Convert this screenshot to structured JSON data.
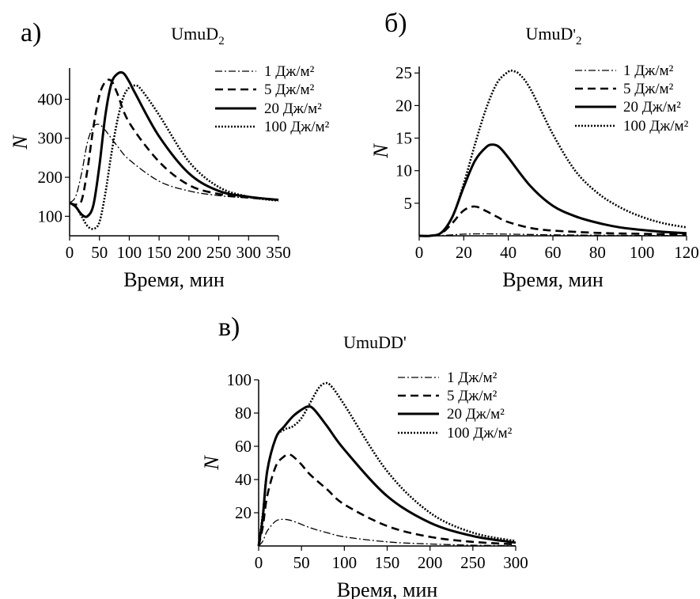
{
  "chart_data": [
    {
      "panel_label": "а)",
      "title": "UmuD",
      "title_sub": "2",
      "title_prime": "",
      "type": "line",
      "xlabel": "Время, мин",
      "ylabel": "N",
      "xlim": [
        0,
        350
      ],
      "ylim": [
        50,
        480
      ],
      "xticks": [
        "0",
        "50",
        "100",
        "150",
        "200",
        "250",
        "300",
        "350"
      ],
      "yticks": [
        "100",
        "200",
        "300",
        "400"
      ],
      "legend_position": "top-right",
      "series": [
        {
          "name": "1 Дж/м²",
          "style": "dashdot",
          "x": [
            0,
            10,
            20,
            30,
            40,
            50,
            60,
            80,
            100,
            150,
            200,
            250,
            300,
            350
          ],
          "y": [
            135,
            150,
            210,
            290,
            330,
            335,
            320,
            280,
            245,
            190,
            165,
            153,
            147,
            143
          ]
        },
        {
          "name": "5 Дж/м²",
          "style": "dashed",
          "x": [
            0,
            10,
            20,
            30,
            40,
            50,
            60,
            70,
            80,
            100,
            150,
            200,
            250,
            300,
            350
          ],
          "y": [
            135,
            130,
            140,
            220,
            330,
            410,
            445,
            447,
            415,
            340,
            240,
            180,
            157,
            148,
            142
          ]
        },
        {
          "name": "20 Дж/м²",
          "style": "solid",
          "x": [
            0,
            10,
            20,
            30,
            40,
            50,
            60,
            70,
            80,
            90,
            100,
            110,
            150,
            200,
            250,
            300,
            350
          ],
          "y": [
            135,
            125,
            105,
            100,
            130,
            230,
            360,
            440,
            465,
            467,
            445,
            415,
            305,
            210,
            165,
            150,
            142
          ]
        },
        {
          "name": "100 Дж/м²",
          "style": "dotted",
          "x": [
            0,
            10,
            20,
            30,
            40,
            50,
            60,
            70,
            80,
            90,
            100,
            110,
            120,
            150,
            200,
            250,
            300,
            350
          ],
          "y": [
            135,
            125,
            100,
            75,
            68,
            85,
            160,
            260,
            345,
            405,
            430,
            435,
            425,
            360,
            240,
            175,
            150,
            140
          ]
        }
      ]
    },
    {
      "panel_label": "б)",
      "title": "UmuD",
      "title_sub": "2",
      "title_prime": "'",
      "type": "line",
      "xlabel": "Время, мин",
      "ylabel": "N",
      "xlim": [
        0,
        120
      ],
      "ylim": [
        0,
        26
      ],
      "xticks": [
        "0",
        "20",
        "40",
        "60",
        "80",
        "100",
        "120"
      ],
      "yticks": [
        "5",
        "10",
        "15",
        "20",
        "25"
      ],
      "legend_position": "top-right",
      "series": [
        {
          "name": "1 Дж/м²",
          "style": "dashdot",
          "x": [
            0,
            10,
            20,
            30,
            40,
            60,
            80,
            100,
            120
          ],
          "y": [
            0,
            0.05,
            0.25,
            0.3,
            0.25,
            0.15,
            0.1,
            0.05,
            0.03
          ]
        },
        {
          "name": "5 Дж/м²",
          "style": "dashed",
          "x": [
            0,
            5,
            10,
            15,
            20,
            25,
            30,
            35,
            40,
            50,
            60,
            80,
            100,
            120
          ],
          "y": [
            0,
            0,
            0.4,
            2.0,
            3.9,
            4.5,
            3.8,
            2.9,
            2.1,
            1.2,
            0.8,
            0.45,
            0.3,
            0.2
          ]
        },
        {
          "name": "20 Дж/м²",
          "style": "solid",
          "x": [
            0,
            5,
            10,
            15,
            20,
            25,
            30,
            33,
            36,
            40,
            50,
            60,
            70,
            80,
            90,
            100,
            110,
            120
          ],
          "y": [
            0,
            0,
            0.5,
            3.0,
            7.5,
            11.5,
            13.6,
            14.0,
            13.6,
            12.0,
            7.6,
            4.6,
            3.0,
            2.0,
            1.3,
            0.9,
            0.6,
            0.4
          ]
        },
        {
          "name": "100 Дж/м²",
          "style": "dotted",
          "x": [
            0,
            5,
            10,
            15,
            20,
            25,
            30,
            35,
            40,
            42,
            45,
            50,
            60,
            70,
            80,
            90,
            100,
            110,
            120
          ],
          "y": [
            0,
            0,
            0.5,
            3.0,
            8.0,
            14.0,
            19.5,
            23.5,
            25.2,
            25.3,
            24.8,
            22.5,
            15.6,
            10.0,
            6.6,
            4.4,
            2.9,
            1.9,
            1.3
          ]
        }
      ]
    },
    {
      "panel_label": "в)",
      "title": "UmuDD'",
      "title_sub": "",
      "title_prime": "",
      "type": "line",
      "xlabel": "Время, мин",
      "ylabel": "N",
      "xlim": [
        0,
        300
      ],
      "ylim": [
        0,
        100
      ],
      "xticks": [
        "0",
        "50",
        "100",
        "150",
        "200",
        "250",
        "300"
      ],
      "yticks": [
        "20",
        "40",
        "60",
        "80",
        "100"
      ],
      "legend_position": "top-right",
      "series": [
        {
          "name": "1 Дж/м²",
          "style": "dashdot",
          "x": [
            0,
            5,
            10,
            20,
            30,
            40,
            60,
            80,
            100,
            150,
            200,
            250,
            300
          ],
          "y": [
            0,
            3,
            9,
            15,
            16,
            15,
            11,
            8,
            5.5,
            2.5,
            1.2,
            0.5,
            0.2
          ]
        },
        {
          "name": "5 Дж/м²",
          "style": "dashed",
          "x": [
            0,
            5,
            10,
            20,
            30,
            35,
            40,
            50,
            60,
            80,
            100,
            150,
            200,
            250,
            300
          ],
          "y": [
            0,
            12,
            30,
            48,
            54,
            55,
            54,
            49,
            43,
            34,
            25,
            12,
            5.5,
            2.5,
            1
          ]
        },
        {
          "name": "20 Дж/м²",
          "style": "solid",
          "x": [
            0,
            5,
            10,
            20,
            30,
            40,
            50,
            58,
            65,
            80,
            100,
            150,
            200,
            250,
            300
          ],
          "y": [
            0,
            18,
            45,
            65,
            72,
            78,
            82,
            84,
            82,
            72,
            58,
            30,
            14,
            6,
            2
          ]
        },
        {
          "name": "100 Дж/м²",
          "style": "dotted",
          "x": [
            0,
            5,
            10,
            20,
            30,
            40,
            50,
            60,
            70,
            78,
            85,
            100,
            150,
            200,
            250,
            300
          ],
          "y": [
            0,
            20,
            45,
            65,
            70,
            72,
            77,
            86,
            95,
            98,
            96,
            85,
            45,
            20,
            8,
            3
          ]
        }
      ]
    }
  ]
}
